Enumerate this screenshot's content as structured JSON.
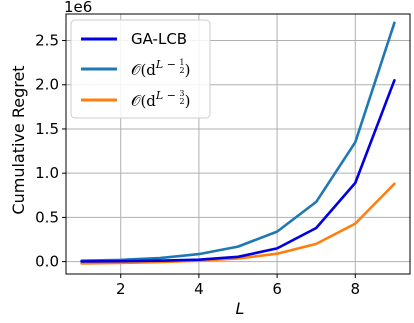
{
  "chart_data": {
    "type": "line",
    "x": [
      1,
      2,
      3,
      4,
      5,
      6,
      7,
      8,
      9
    ],
    "xlabel": "L",
    "ylabel": "Cumulative Regret",
    "y_multiplier": "1e6",
    "xlim": [
      0.6,
      9.4
    ],
    "ylim": [
      -0.14,
      2.8
    ],
    "xticks": [
      "2",
      "4",
      "6",
      "8"
    ],
    "yticks": [
      "0.0",
      "0.5",
      "1.0",
      "1.5",
      "2.0",
      "2.5"
    ],
    "grid": true,
    "legend_position": "top-left",
    "series": [
      {
        "name": "GA-LCB",
        "color": "#0000e0",
        "values": [
          0.002,
          0.005,
          0.01,
          0.022,
          0.055,
          0.15,
          0.38,
          0.89,
          2.05
        ]
      },
      {
        "name": "O(d^(L-1/2))",
        "label_parts": {
          "prefix": "𝒪(d",
          "sup_main": "L − ",
          "frac_num": "1",
          "frac_den": "2",
          "suffix": ")"
        },
        "color": "#1f77b4",
        "values": [
          0.01,
          0.02,
          0.04,
          0.085,
          0.17,
          0.34,
          0.675,
          1.35,
          2.7
        ]
      },
      {
        "name": "O(d^(L-3/2))",
        "label_parts": {
          "prefix": "𝒪(d",
          "sup_main": "L − ",
          "frac_num": "3",
          "frac_den": "2",
          "suffix": ")"
        },
        "color": "#ff7f0e",
        "values": [
          -0.02,
          -0.015,
          -0.005,
          0.01,
          0.035,
          0.09,
          0.2,
          0.43,
          0.88
        ]
      }
    ]
  }
}
